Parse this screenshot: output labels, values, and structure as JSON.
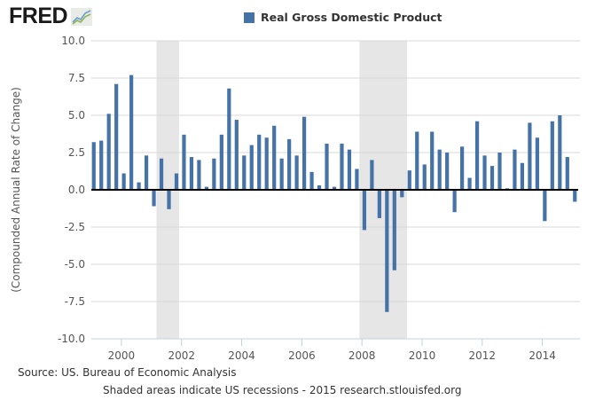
{
  "logo": {
    "text": "FRED",
    "icon": "line-graph-icon"
  },
  "legend": {
    "label": "Real Gross Domestic Product",
    "color": "#4572A7"
  },
  "source": "Source: US. Bureau of Economic Analysis",
  "footnote": "Shaded areas indicate US recessions - 2015 research.stlouisfed.org",
  "chart_data": {
    "type": "bar",
    "title": "Real Gross Domestic Product",
    "xlabel": "",
    "ylabel": "(Compounded Annual Rate of Change)",
    "ylim": [
      -10,
      10
    ],
    "yticks": [
      10.0,
      7.5,
      5.0,
      2.5,
      0.0,
      -2.5,
      -5.0,
      -7.5,
      -10.0
    ],
    "ytick_labels": [
      "10.0",
      "7.5",
      "5.0",
      "2.5",
      "0.0",
      "-2.5",
      "-5.0",
      "-7.5",
      "-10.0"
    ],
    "xlim": [
      "1999-01-01",
      "2015-04-01"
    ],
    "xticks": [
      "2000",
      "2002",
      "2004",
      "2006",
      "2008",
      "2010",
      "2012",
      "2014"
    ],
    "grid": true,
    "legend_position": "top-center",
    "bar_color": "#4572A7",
    "recession_color": "#e6e6e6",
    "recessions": [
      {
        "start": "2001-03",
        "end": "2001-11"
      },
      {
        "start": "2007-12",
        "end": "2009-06"
      }
    ],
    "categories": [
      "1999Q1",
      "1999Q2",
      "1999Q3",
      "1999Q4",
      "2000Q1",
      "2000Q2",
      "2000Q3",
      "2000Q4",
      "2001Q1",
      "2001Q2",
      "2001Q3",
      "2001Q4",
      "2002Q1",
      "2002Q2",
      "2002Q3",
      "2002Q4",
      "2003Q1",
      "2003Q2",
      "2003Q3",
      "2003Q4",
      "2004Q1",
      "2004Q2",
      "2004Q3",
      "2004Q4",
      "2005Q1",
      "2005Q2",
      "2005Q3",
      "2005Q4",
      "2006Q1",
      "2006Q2",
      "2006Q3",
      "2006Q4",
      "2007Q1",
      "2007Q2",
      "2007Q3",
      "2007Q4",
      "2008Q1",
      "2008Q2",
      "2008Q3",
      "2008Q4",
      "2009Q1",
      "2009Q2",
      "2009Q3",
      "2009Q4",
      "2010Q1",
      "2010Q2",
      "2010Q3",
      "2010Q4",
      "2011Q1",
      "2011Q2",
      "2011Q3",
      "2011Q4",
      "2012Q1",
      "2012Q2",
      "2012Q3",
      "2012Q4",
      "2013Q1",
      "2013Q2",
      "2013Q3",
      "2013Q4",
      "2014Q1",
      "2014Q2",
      "2014Q3",
      "2014Q4",
      "2015Q1"
    ],
    "series": [
      {
        "name": "Real Gross Domestic Product",
        "values": [
          3.2,
          3.3,
          5.1,
          7.1,
          1.1,
          7.7,
          0.5,
          2.3,
          -1.1,
          2.1,
          -1.3,
          1.1,
          3.7,
          2.2,
          2.0,
          0.2,
          2.1,
          3.7,
          6.8,
          4.7,
          2.3,
          3.0,
          3.7,
          3.5,
          4.3,
          2.1,
          3.4,
          2.3,
          4.9,
          1.2,
          0.3,
          3.1,
          0.2,
          3.1,
          2.7,
          1.4,
          -2.7,
          2.0,
          -1.9,
          -8.2,
          -5.4,
          -0.5,
          1.3,
          3.9,
          1.7,
          3.9,
          2.7,
          2.5,
          -1.5,
          2.9,
          0.8,
          4.6,
          2.3,
          1.6,
          2.5,
          0.1,
          2.7,
          1.8,
          4.5,
          3.5,
          -2.1,
          4.6,
          5.0,
          2.2,
          -0.8
        ]
      }
    ]
  }
}
